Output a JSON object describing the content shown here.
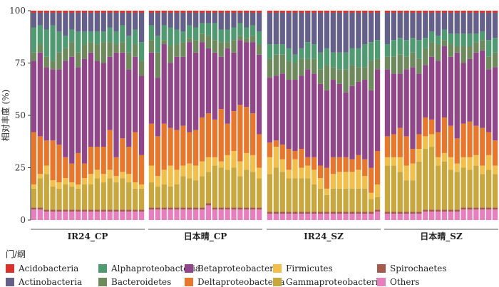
{
  "chart_data": {
    "type": "bar",
    "stacked": true,
    "title": "",
    "xlabel": "",
    "ylabel": "相对丰度 (%)",
    "ylim": [
      0,
      100
    ],
    "yticks": [
      0,
      25,
      50,
      75,
      100
    ],
    "legend_title": "门/纲",
    "legend_position": "bottom",
    "stack_order_bottom_to_top": [
      "Others",
      "Spirochaetes",
      "Gammaproteobacteria",
      "Firmicutes",
      "Deltaproteobacteria",
      "Betaproteobacteria",
      "Bacteroidetes",
      "Alphaproteobacteria",
      "Actinobacteria",
      "Acidobacteria"
    ],
    "legend": [
      {
        "name": "Acidobacteria",
        "color": "#D7322B"
      },
      {
        "name": "Alphaproteobacteria",
        "color": "#4F9A70"
      },
      {
        "name": "Betaproteobacteria",
        "color": "#92468A"
      },
      {
        "name": "Firmicutes",
        "color": "#F2C04A"
      },
      {
        "name": "Spirochaetes",
        "color": "#A55A4E"
      },
      {
        "name": "Actinobacteria",
        "color": "#63608A"
      },
      {
        "name": "Bacteroidetes",
        "color": "#6E8A5C"
      },
      {
        "name": "Deltaproteobacteria",
        "color": "#E8772E"
      },
      {
        "name": "Gammaproteobacteria",
        "color": "#C8A73E"
      },
      {
        "name": "Others",
        "color": "#E77FBE"
      }
    ],
    "facets": [
      {
        "label": "IR24_CP",
        "cumulative_boundaries": [
          [
            5,
            6,
            15,
            17,
            42,
            76,
            80,
            92,
            99,
            100
          ],
          [
            5,
            6,
            20,
            22,
            40,
            80,
            84,
            93,
            99,
            100
          ],
          [
            4,
            5,
            22,
            26,
            38,
            73,
            78,
            91,
            99,
            100
          ],
          [
            4,
            5,
            16,
            19,
            38,
            72,
            76,
            93,
            99,
            100
          ],
          [
            4,
            5,
            15,
            18,
            36,
            72,
            80,
            90,
            99,
            100
          ],
          [
            4,
            5,
            17,
            20,
            30,
            76,
            82,
            88,
            99,
            100
          ],
          [
            4,
            5,
            16,
            18,
            27,
            78,
            85,
            91,
            99,
            100
          ],
          [
            4,
            5,
            15,
            17,
            32,
            73,
            80,
            90,
            99,
            100
          ],
          [
            4,
            5,
            17,
            20,
            27,
            77,
            84,
            90,
            99,
            100
          ],
          [
            4,
            5,
            17,
            22,
            35,
            80,
            85,
            90,
            99,
            100
          ],
          [
            4,
            5,
            20,
            24,
            35,
            76,
            84,
            90,
            99,
            100
          ],
          [
            4,
            5,
            18,
            22,
            35,
            75,
            85,
            90,
            99,
            100
          ],
          [
            4,
            5,
            20,
            24,
            43,
            78,
            85,
            92,
            99,
            100
          ],
          [
            4,
            5,
            18,
            21,
            30,
            80,
            84,
            90,
            99,
            100
          ],
          [
            4,
            5,
            20,
            23,
            39,
            80,
            85,
            93,
            99,
            100
          ],
          [
            4,
            5,
            18,
            22,
            35,
            72,
            80,
            88,
            99,
            100
          ],
          [
            4,
            5,
            15,
            18,
            42,
            78,
            84,
            91,
            99,
            100
          ],
          [
            4,
            5,
            15,
            17,
            31,
            69,
            76,
            85,
            99,
            100
          ]
        ]
      },
      {
        "label": "日本晴_CP",
        "cumulative_boundaries": [
          [
            5,
            6,
            18,
            26,
            46,
            80,
            86,
            93,
            99,
            100
          ],
          [
            5,
            6,
            16,
            21,
            40,
            68,
            80,
            88,
            99,
            100
          ],
          [
            5,
            6,
            17,
            24,
            46,
            84,
            86,
            93,
            99,
            100
          ],
          [
            5,
            6,
            16,
            26,
            44,
            75,
            83,
            92,
            99,
            100
          ],
          [
            5,
            6,
            17,
            24,
            43,
            78,
            84,
            91,
            99,
            100
          ],
          [
            5,
            6,
            21,
            26,
            45,
            78,
            85,
            90,
            99,
            100
          ],
          [
            5,
            6,
            20,
            27,
            42,
            85,
            87,
            93,
            99,
            100
          ],
          [
            5,
            6,
            19,
            26,
            43,
            80,
            86,
            92,
            99,
            100
          ],
          [
            5,
            6,
            21,
            28,
            49,
            85,
            89,
            94,
            99,
            100
          ],
          [
            7,
            8,
            23,
            30,
            51,
            82,
            88,
            94,
            99,
            100
          ],
          [
            5,
            6,
            26,
            30,
            48,
            80,
            86,
            94,
            99,
            100
          ],
          [
            5,
            6,
            25,
            28,
            53,
            78,
            85,
            91,
            99,
            100
          ],
          [
            5,
            6,
            24,
            31,
            46,
            82,
            85,
            91,
            99,
            100
          ],
          [
            5,
            6,
            25,
            33,
            52,
            80,
            86,
            92,
            99,
            100
          ],
          [
            5,
            6,
            21,
            28,
            55,
            86,
            88,
            94,
            99,
            100
          ],
          [
            5,
            6,
            24,
            32,
            54,
            85,
            87,
            92,
            99,
            100
          ],
          [
            5,
            6,
            23,
            31,
            51,
            85,
            88,
            93,
            99,
            100
          ],
          [
            5,
            6,
            20,
            25,
            41,
            79,
            84,
            90,
            99,
            100
          ]
        ]
      },
      {
        "label": "IR24_SZ",
        "cumulative_boundaries": [
          [
            3,
            4,
            22,
            30,
            37,
            68,
            77,
            84,
            99,
            100
          ],
          [
            3,
            4,
            25,
            35,
            38,
            69,
            79,
            84,
            99,
            100
          ],
          [
            3,
            4,
            23,
            29,
            36,
            70,
            79,
            84,
            99,
            100
          ],
          [
            3,
            4,
            20,
            24,
            34,
            67,
            76,
            82,
            99,
            100
          ],
          [
            3,
            4,
            20,
            29,
            33,
            67,
            75,
            79,
            99,
            100
          ],
          [
            3,
            4,
            20,
            25,
            34,
            69,
            77,
            82,
            99,
            100
          ],
          [
            3,
            4,
            20,
            26,
            30,
            72,
            77,
            85,
            99,
            100
          ],
          [
            3,
            4,
            17,
            24,
            30,
            70,
            77,
            84,
            99,
            100
          ],
          [
            3,
            4,
            15,
            20,
            26,
            65,
            72,
            80,
            99,
            100
          ],
          [
            3,
            4,
            12,
            15,
            25,
            62,
            74,
            82,
            99,
            100
          ],
          [
            3,
            4,
            15,
            22,
            30,
            67,
            73,
            80,
            99,
            100
          ],
          [
            3,
            4,
            15,
            23,
            30,
            65,
            72,
            80,
            99,
            100
          ],
          [
            3,
            4,
            15,
            23,
            30,
            61,
            72,
            80,
            99,
            100
          ],
          [
            3,
            4,
            15,
            23,
            29,
            64,
            74,
            82,
            99,
            100
          ],
          [
            3,
            4,
            15,
            24,
            31,
            66,
            73,
            82,
            99,
            100
          ],
          [
            3,
            4,
            15,
            21,
            29,
            67,
            73,
            84,
            99,
            100
          ],
          [
            3,
            4,
            10,
            13,
            25,
            62,
            76,
            85,
            99,
            100
          ],
          [
            4,
            5,
            11,
            17,
            33,
            72,
            77,
            86,
            99,
            100
          ]
        ]
      },
      {
        "label": "日本晴_SZ",
        "cumulative_boundaries": [
          [
            3,
            4,
            26,
            30,
            40,
            72,
            78,
            84,
            99,
            100
          ],
          [
            3,
            4,
            26,
            30,
            41,
            70,
            78,
            86,
            99,
            100
          ],
          [
            3,
            4,
            23,
            30,
            44,
            70,
            79,
            87,
            99,
            100
          ],
          [
            3,
            4,
            19,
            26,
            40,
            72,
            78,
            86,
            99,
            100
          ],
          [
            3,
            4,
            19,
            27,
            34,
            73,
            80,
            87,
            99,
            100
          ],
          [
            3,
            4,
            28,
            34,
            41,
            70,
            77,
            86,
            99,
            100
          ],
          [
            4,
            5,
            34,
            40,
            49,
            74,
            82,
            87,
            99,
            100
          ],
          [
            4,
            5,
            35,
            41,
            48,
            78,
            85,
            90,
            99,
            100
          ],
          [
            4,
            5,
            26,
            30,
            42,
            76,
            84,
            88,
            99,
            100
          ],
          [
            4,
            5,
            28,
            32,
            49,
            83,
            86,
            91,
            99,
            100
          ],
          [
            4,
            5,
            24,
            30,
            45,
            78,
            84,
            89,
            99,
            100
          ],
          [
            4,
            5,
            23,
            27,
            39,
            80,
            83,
            89,
            99,
            100
          ],
          [
            5,
            6,
            25,
            30,
            46,
            75,
            83,
            89,
            99,
            100
          ],
          [
            5,
            6,
            24,
            30,
            47,
            77,
            83,
            89,
            99,
            100
          ],
          [
            5,
            6,
            26,
            31,
            45,
            80,
            85,
            89,
            99,
            100
          ],
          [
            5,
            6,
            22,
            26,
            44,
            81,
            86,
            90,
            99,
            100
          ],
          [
            5,
            6,
            24,
            31,
            42,
            72,
            78,
            86,
            99,
            100
          ],
          [
            5,
            6,
            22,
            26,
            38,
            73,
            80,
            87,
            99,
            100
          ]
        ]
      }
    ]
  }
}
